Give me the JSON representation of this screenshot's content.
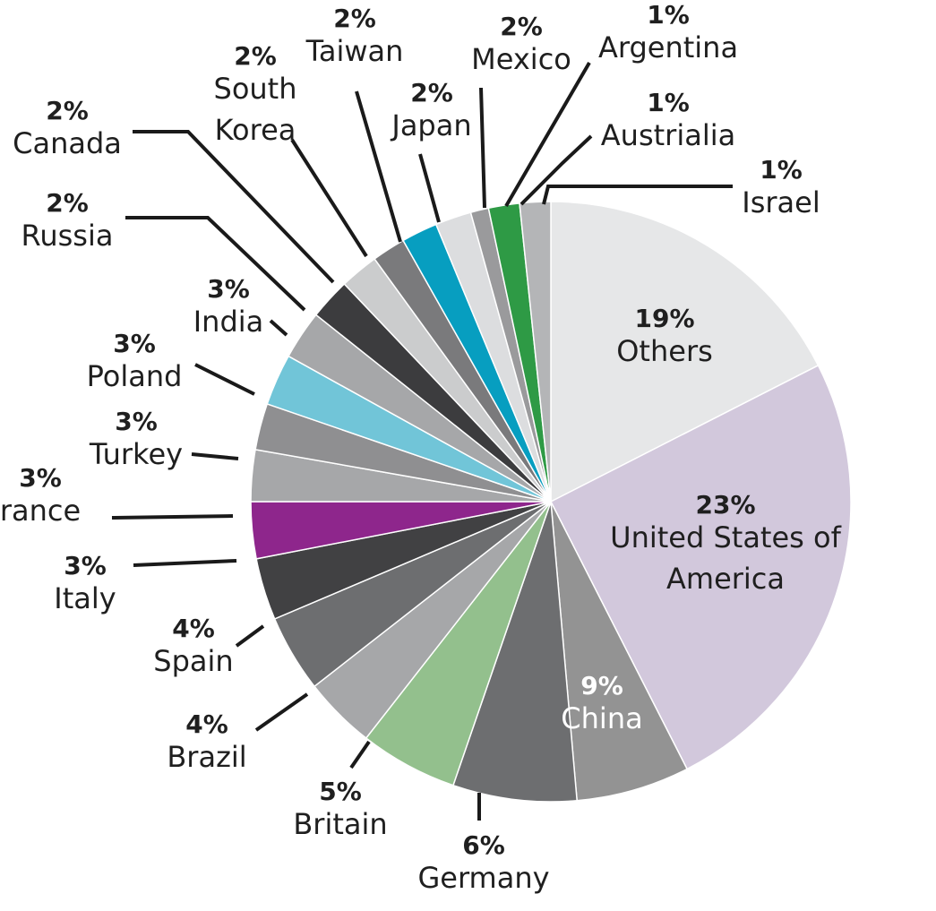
{
  "chart_data": {
    "type": "pie",
    "slices": [
      {
        "label": "Others",
        "pct_label": "19%",
        "value": 19,
        "color": "#e6e7e8"
      },
      {
        "label": "United States of America",
        "label_lines": [
          "United States of",
          "America"
        ],
        "pct_label": "23%",
        "value": 23,
        "color": "#d2c8dc"
      },
      {
        "label": "China",
        "pct_label": "9%",
        "value": 9,
        "color": "#939393"
      },
      {
        "label": "Germany",
        "pct_label": "6%",
        "value": 6,
        "color": "#6d6e70"
      },
      {
        "label": "Britain",
        "pct_label": "5%",
        "value": 5,
        "color": "#93c08d"
      },
      {
        "label": "Brazil",
        "pct_label": "4%",
        "value": 4,
        "color": "#a6a7a9"
      },
      {
        "label": "Spain",
        "pct_label": "4%",
        "value": 4,
        "color": "#6d6e70"
      },
      {
        "label": "Italy",
        "pct_label": "3%",
        "value": 3,
        "color": "#414143"
      },
      {
        "label": "France",
        "label_display": "rance",
        "pct_label": "3%",
        "value": 3,
        "color": "#8e268c"
      },
      {
        "label": "Turkey",
        "pct_label": "3%",
        "value": 3,
        "color": "#a6a7a9"
      },
      {
        "label": "Poland",
        "pct_label": "3%",
        "value": 3,
        "color": "#8f8f91"
      },
      {
        "label": "India",
        "pct_label": "3%",
        "value": 3,
        "color": "#71c5d8"
      },
      {
        "label": "Russia",
        "pct_label": "2%",
        "value": 2,
        "color": "#a6a7a9"
      },
      {
        "label": "Canada",
        "pct_label": "2%",
        "value": 2,
        "color": "#3c3c3e"
      },
      {
        "label": "South Korea",
        "label_lines": [
          "South",
          "Korea"
        ],
        "pct_label": "2%",
        "value": 2,
        "color": "#cbcccd"
      },
      {
        "label": "Taiwan",
        "pct_label": "2%",
        "value": 2,
        "color": "#7a7a7c"
      },
      {
        "label": "Japan",
        "pct_label": "2%",
        "value": 2,
        "color": "#079ec0"
      },
      {
        "label": "Mexico",
        "pct_label": "2%",
        "value": 2,
        "color": "#dcdddf"
      },
      {
        "label": "Argentina",
        "pct_label": "1%",
        "value": 1,
        "color": "#9a9a9c"
      },
      {
        "label": "Austrialia",
        "pct_label": "1%",
        "value": 1,
        "color": "#2e9a45"
      },
      {
        "label": "Israel",
        "pct_label": "1%",
        "value": 1,
        "color": "#b4b5b7"
      }
    ]
  }
}
